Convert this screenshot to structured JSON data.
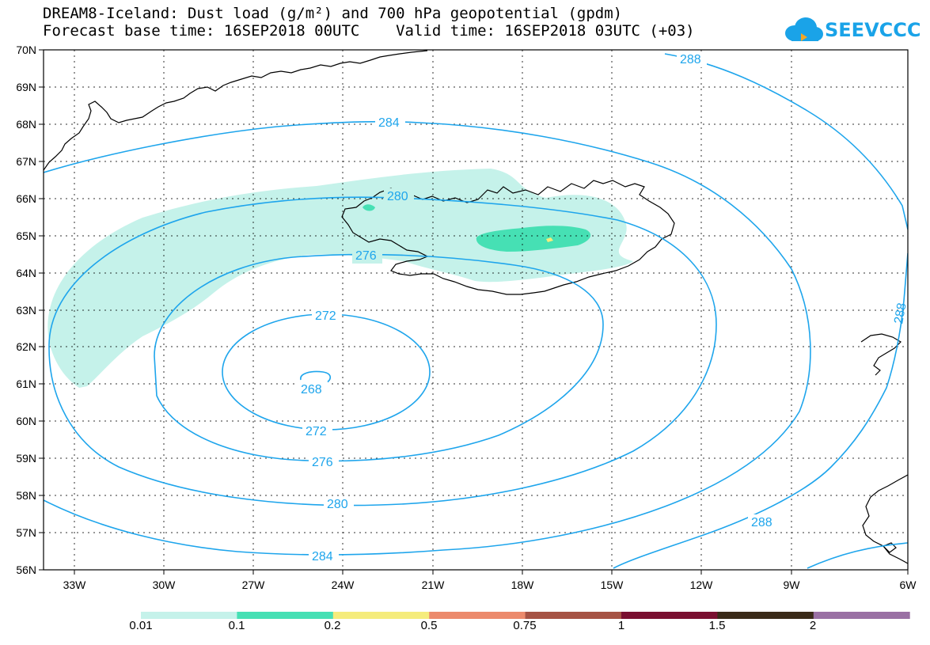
{
  "title": {
    "line1": "DREAM8-Iceland: Dust load (g/m²) and 700 hPa geopotential (gpdm)",
    "line2": "Forecast base time: 16SEP2018 00UTC    Valid time: 16SEP2018 03UTC (+03)"
  },
  "logo": {
    "text": "SEEVCCC"
  },
  "axes": {
    "lat_labels": [
      "70N",
      "69N",
      "68N",
      "67N",
      "66N",
      "65N",
      "64N",
      "63N",
      "62N",
      "61N",
      "60N",
      "59N",
      "58N",
      "57N",
      "56N"
    ],
    "lon_labels": [
      "33W",
      "30W",
      "27W",
      "24W",
      "21W",
      "18W",
      "15W",
      "12W",
      "9W",
      "6W"
    ]
  },
  "contours": {
    "labels": [
      "288",
      "284",
      "280",
      "276",
      "272",
      "268",
      "272",
      "276",
      "280",
      "284",
      "288",
      "288"
    ]
  },
  "colorbar": {
    "ticks": [
      "0.01",
      "0.1",
      "0.2",
      "0.5",
      "0.75",
      "1",
      "1.5",
      "2"
    ],
    "colors": [
      "#c5f2ea",
      "#46e0b4",
      "#f5ec7c",
      "#ec8a6c",
      "#a65344",
      "#7a0f30",
      "#3a2a18",
      "#9a70a4"
    ]
  }
}
